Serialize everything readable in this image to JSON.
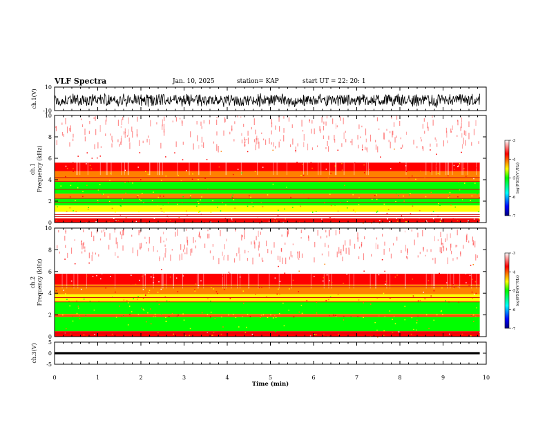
{
  "header": {
    "title": "VLF Spectra",
    "date": "Jan. 10, 2025",
    "station": "station= KAP",
    "start": "start UT =  22: 20: 1"
  },
  "chart_data": [
    {
      "type": "line",
      "name": "ch1-waveform",
      "ylabel": "ch.1(V)",
      "ylim": [
        -10,
        10
      ],
      "ytick_labels": [
        "10",
        "-10"
      ],
      "xlim": [
        0,
        10
      ],
      "x_data_max": 9.85,
      "signal": "dense noise, mostly between about -5 and 5 V"
    },
    {
      "type": "heatmap",
      "name": "ch1-spectrogram",
      "ylabel": "ch.1\nFrequency (kHz)",
      "ylim": [
        0,
        10
      ],
      "ytick_labels": [
        "0",
        "2",
        "4",
        "6",
        "8",
        "10"
      ],
      "xlim": [
        0,
        10
      ],
      "x_data_max": 9.85,
      "bands": [
        {
          "from": 0.0,
          "to": 0.4,
          "level": -3.9
        },
        {
          "from": 0.4,
          "to": 1.0,
          "level": -3.6
        },
        {
          "from": 1.0,
          "to": 1.6,
          "level": -4.8
        },
        {
          "from": 1.6,
          "to": 2.3,
          "level": -5.0
        },
        {
          "from": 2.3,
          "to": 2.7,
          "level": -4.5
        },
        {
          "from": 2.7,
          "to": 3.8,
          "level": -5.0
        },
        {
          "from": 3.8,
          "to": 4.8,
          "level": -4.4
        },
        {
          "from": 4.8,
          "to": 5.6,
          "level": -3.9
        },
        {
          "from": 5.6,
          "to": 7.0,
          "level": -3.6
        },
        {
          "from": 7.0,
          "to": 10.0,
          "level": -3.1
        }
      ],
      "lines_khz": [
        0.25,
        0.55,
        0.75,
        1.9,
        2.25,
        3.1,
        3.85,
        4.2
      ]
    },
    {
      "type": "heatmap",
      "name": "ch2-spectrogram",
      "ylabel": "ch.2\nFrequency (kHz)",
      "ylim": [
        0,
        10
      ],
      "ytick_labels": [
        "0",
        "2",
        "4",
        "6",
        "8",
        "10"
      ],
      "xlim": [
        0,
        10
      ],
      "x_data_max": 9.85,
      "bands": [
        {
          "from": 0.0,
          "to": 0.5,
          "level": -4.1
        },
        {
          "from": 0.5,
          "to": 1.8,
          "level": -5.0
        },
        {
          "from": 1.8,
          "to": 2.1,
          "level": -4.4
        },
        {
          "from": 2.1,
          "to": 3.2,
          "level": -5.1
        },
        {
          "from": 3.2,
          "to": 3.9,
          "level": -4.6
        },
        {
          "from": 3.9,
          "to": 4.8,
          "level": -4.2
        },
        {
          "from": 4.8,
          "to": 5.8,
          "level": -3.8
        },
        {
          "from": 5.8,
          "to": 7.2,
          "level": -3.5
        },
        {
          "from": 7.2,
          "to": 10.0,
          "level": -3.1
        }
      ],
      "lines_khz": [
        0.3,
        1.9,
        3.2,
        3.6,
        4.6
      ]
    },
    {
      "type": "line",
      "name": "ch3-waveform",
      "ylabel": "ch.3(V)",
      "ylim": [
        -5,
        5
      ],
      "ytick_labels": [
        "5",
        "0",
        "-5"
      ],
      "xlim": [
        0,
        10
      ],
      "x_data_max": 9.85,
      "signal": "thin band near 0 V",
      "band": [
        -0.5,
        0.5
      ]
    }
  ],
  "colorbar": {
    "label": "log(PSD)(V²/Hz)",
    "range": [
      -7,
      -3
    ],
    "tick_labels": [
      "-3",
      "-4",
      "-5",
      "-6",
      "-7"
    ],
    "colors": [
      "#000080",
      "#0000ff",
      "#00ffff",
      "#00ff00",
      "#ffff00",
      "#ff8000",
      "#ff0000",
      "#ffffff"
    ]
  },
  "xaxis": {
    "label": "Time (min)",
    "tick_labels": [
      "0",
      "1",
      "2",
      "3",
      "4",
      "5",
      "6",
      "7",
      "8",
      "9",
      "10"
    ]
  }
}
